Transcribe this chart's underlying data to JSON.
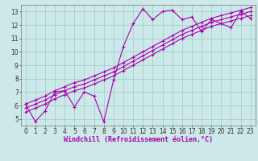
{
  "xlabel": "Windchill (Refroidissement éolien,°C)",
  "ylabel": "",
  "bg_color": "#cce8e8",
  "grid_color": "#99cccc",
  "line_color": "#aa00aa",
  "xlim": [
    -0.5,
    23.5
  ],
  "ylim": [
    4.5,
    13.5
  ],
  "xticks": [
    0,
    1,
    2,
    3,
    4,
    5,
    6,
    7,
    8,
    9,
    10,
    11,
    12,
    13,
    14,
    15,
    16,
    17,
    18,
    19,
    20,
    21,
    22,
    23
  ],
  "yticks": [
    5,
    6,
    7,
    8,
    9,
    10,
    11,
    12,
    13
  ],
  "line1_x": [
    0,
    1,
    2,
    3,
    4,
    5,
    6,
    7,
    8,
    9,
    10,
    11,
    12,
    13,
    14,
    15,
    16,
    17,
    18,
    19,
    20,
    21,
    22,
    23
  ],
  "line1_y": [
    6.1,
    4.8,
    5.6,
    7.0,
    7.1,
    5.9,
    7.0,
    6.7,
    4.8,
    7.9,
    10.4,
    12.1,
    13.2,
    12.4,
    13.0,
    13.1,
    12.4,
    12.6,
    11.5,
    12.4,
    12.1,
    11.8,
    13.0,
    12.5
  ],
  "line2_x": [
    0,
    1,
    2,
    3,
    4,
    5,
    6,
    7,
    8,
    9,
    10,
    11,
    12,
    13,
    14,
    15,
    16,
    17,
    18,
    19,
    20,
    21,
    22,
    23
  ],
  "line2_y": [
    5.5,
    5.8,
    6.1,
    6.5,
    6.8,
    7.1,
    7.3,
    7.6,
    7.9,
    8.2,
    8.6,
    9.0,
    9.4,
    9.8,
    10.2,
    10.6,
    11.0,
    11.3,
    11.6,
    11.9,
    12.1,
    12.3,
    12.5,
    12.7
  ],
  "line3_x": [
    0,
    1,
    2,
    3,
    4,
    5,
    6,
    7,
    8,
    9,
    10,
    11,
    12,
    13,
    14,
    15,
    16,
    17,
    18,
    19,
    20,
    21,
    22,
    23
  ],
  "line3_y": [
    5.8,
    6.1,
    6.4,
    6.8,
    7.1,
    7.4,
    7.6,
    7.9,
    8.2,
    8.5,
    8.9,
    9.3,
    9.7,
    10.1,
    10.5,
    10.9,
    11.3,
    11.6,
    11.9,
    12.2,
    12.4,
    12.6,
    12.8,
    13.0
  ],
  "line4_x": [
    0,
    1,
    2,
    3,
    4,
    5,
    6,
    7,
    8,
    9,
    10,
    11,
    12,
    13,
    14,
    15,
    16,
    17,
    18,
    19,
    20,
    21,
    22,
    23
  ],
  "line4_y": [
    6.1,
    6.4,
    6.7,
    7.1,
    7.4,
    7.7,
    7.9,
    8.2,
    8.5,
    8.8,
    9.2,
    9.6,
    10.0,
    10.4,
    10.8,
    11.2,
    11.6,
    11.9,
    12.2,
    12.5,
    12.7,
    12.9,
    13.1,
    13.3
  ],
  "marker_size": 2.5,
  "line_width": 0.8,
  "xlabel_fontsize": 6,
  "tick_fontsize": 5.5
}
